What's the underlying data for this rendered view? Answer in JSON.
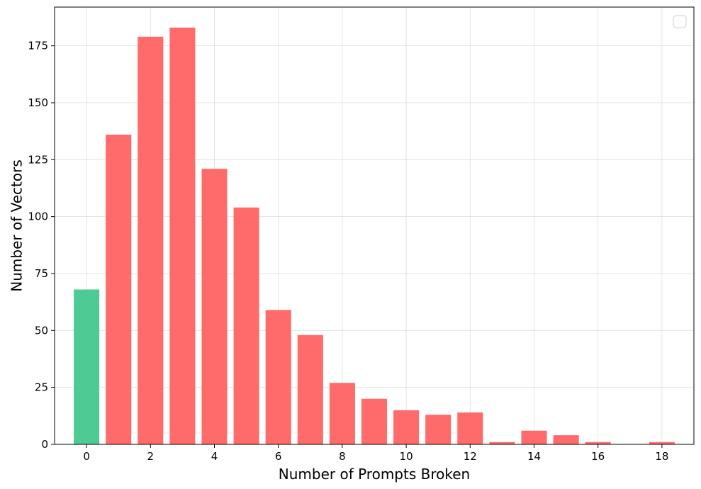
{
  "chart_data": {
    "type": "bar",
    "title": "",
    "xlabel": "Number of Prompts Broken",
    "ylabel": "Number of Vectors",
    "x": [
      0,
      1,
      2,
      3,
      4,
      5,
      6,
      7,
      8,
      9,
      10,
      11,
      12,
      13,
      14,
      15,
      16,
      17,
      18
    ],
    "values": [
      68,
      136,
      179,
      183,
      121,
      104,
      59,
      48,
      27,
      20,
      15,
      13,
      14,
      1,
      6,
      4,
      1,
      0,
      1
    ],
    "bar_colors": [
      "#4ecb94",
      "#ff6b6b",
      "#ff6b6b",
      "#ff6b6b",
      "#ff6b6b",
      "#ff6b6b",
      "#ff6b6b",
      "#ff6b6b",
      "#ff6b6b",
      "#ff6b6b",
      "#ff6b6b",
      "#ff6b6b",
      "#ff6b6b",
      "#ff6b6b",
      "#ff6b6b",
      "#ff6b6b",
      "#ff6b6b",
      "#ff6b6b",
      "#ff6b6b"
    ],
    "xticks": [
      0,
      2,
      4,
      6,
      8,
      10,
      12,
      14,
      16,
      18
    ],
    "yticks": [
      0,
      25,
      50,
      75,
      100,
      125,
      150,
      175
    ],
    "xlim": [
      -1,
      19
    ],
    "ylim": [
      0,
      192
    ],
    "grid": true,
    "legend": "top-right"
  }
}
